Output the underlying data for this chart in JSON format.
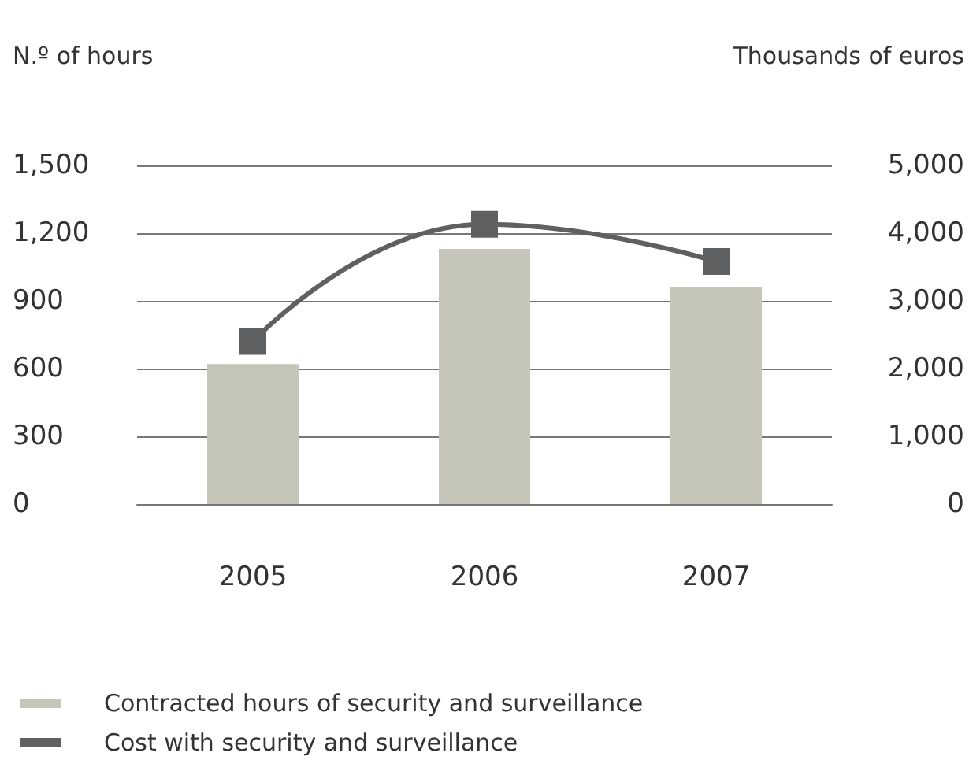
{
  "chart_data": {
    "type": "bar",
    "xlabel": null,
    "ylabel": "N.º of hours",
    "y2label": "Thousands of euros",
    "categories": [
      "2005",
      "2006",
      "2007"
    ],
    "series": [
      {
        "name": "Contracted hours of security and surveillance",
        "color": "#c5c5b9",
        "values": [
          620,
          1130,
          960
        ]
      },
      {
        "name": "Cost with security and surveillance",
        "type": "line",
        "axis": "y2",
        "color": "#5f6062",
        "values": [
          2400,
          4130,
          3580
        ],
        "marker": "square"
      }
    ],
    "ylim": [
      0,
      1500
    ],
    "yticks": [
      {
        "value": 0,
        "label": "0"
      },
      {
        "value": 300,
        "label": "300"
      },
      {
        "value": 600,
        "label": "600"
      },
      {
        "value": 900,
        "label": "900"
      },
      {
        "value": 1200,
        "label": "1,200"
      },
      {
        "value": 1500,
        "label": "1,500"
      }
    ],
    "y2lim": [
      0,
      5000
    ],
    "y2ticks": [
      {
        "value": 0,
        "label": "0"
      },
      {
        "value": 1000,
        "label": "1,000"
      },
      {
        "value": 2000,
        "label": "2,000"
      },
      {
        "value": 3000,
        "label": "3,000"
      },
      {
        "value": 4000,
        "label": "4,000"
      },
      {
        "value": 5000,
        "label": "5,000"
      }
    ],
    "grid": "y",
    "legend": "bottom left"
  }
}
